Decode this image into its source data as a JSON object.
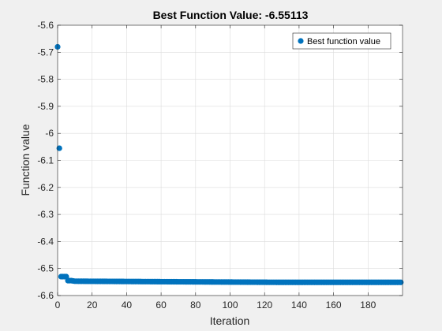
{
  "chart_data": {
    "type": "scatter",
    "title": "Best Function Value: -6.55113",
    "xlabel": "Iteration",
    "ylabel": "Function value",
    "xlim": [
      0,
      200
    ],
    "ylim": [
      -6.6,
      -5.6
    ],
    "xticks": [
      0,
      20,
      40,
      60,
      80,
      100,
      120,
      140,
      160,
      180
    ],
    "xtick_labels": [
      "0",
      "20",
      "40",
      "60",
      "80",
      "100",
      "120",
      "140",
      "160",
      "180"
    ],
    "yticks": [
      -5.6,
      -5.7,
      -5.8,
      -5.9,
      -6.0,
      -6.1,
      -6.2,
      -6.3,
      -6.4,
      -6.5,
      -6.6
    ],
    "ytick_labels": [
      "-5.6",
      "-5.7",
      "-5.8",
      "-5.9",
      "-6",
      "-6.1",
      "-6.2",
      "-6.3",
      "-6.4",
      "-6.5",
      "-6.6"
    ],
    "grid": true,
    "legend_position": "top-right",
    "marker_color": "#0072bd",
    "series": [
      {
        "name": "Best function value",
        "points": [
          {
            "x": 0,
            "y": -5.68
          },
          {
            "x": 1,
            "y": -6.055
          },
          {
            "x": 2,
            "y": -6.53
          },
          {
            "x": 3,
            "y": -6.53
          },
          {
            "x": 4,
            "y": -6.53
          },
          {
            "x": 5,
            "y": -6.53
          },
          {
            "x": 6,
            "y": -6.545
          },
          {
            "x": 7,
            "y": -6.545
          },
          {
            "x": 8,
            "y": -6.545
          },
          {
            "x": 9,
            "y": -6.546
          }
        ],
        "tail": {
          "from": 10,
          "to": 199,
          "start": -6.547,
          "end": -6.55113
        }
      }
    ]
  }
}
